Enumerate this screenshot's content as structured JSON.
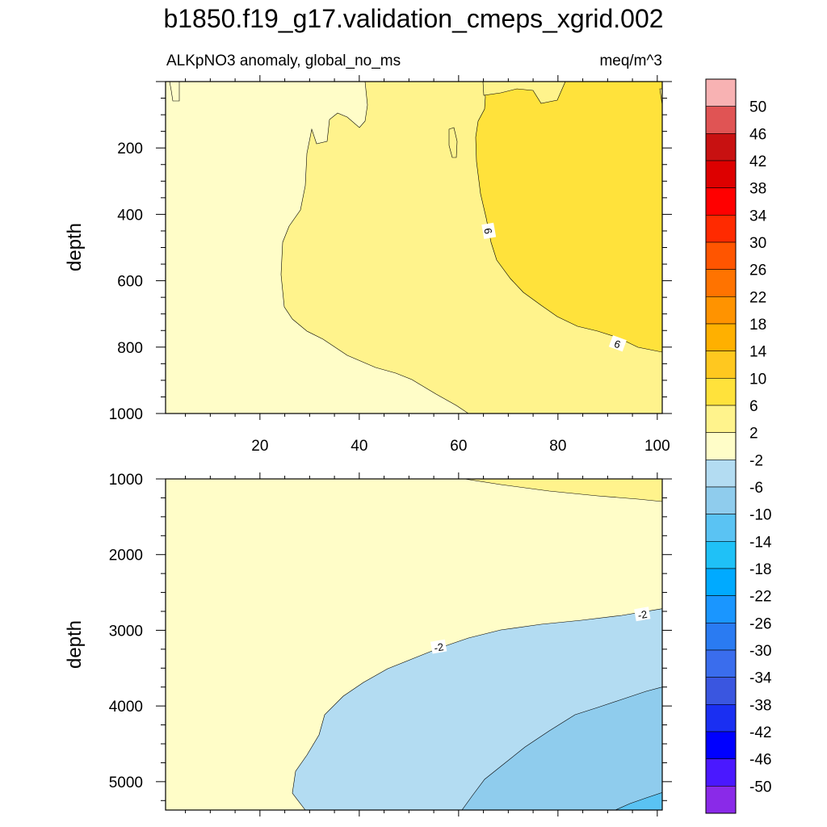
{
  "figure": {
    "title": "b1850.f19_g17.validation_cmeps_xgrid.002",
    "left_subtitle": "ALKpNO3 anomaly, global_no_ms",
    "right_subtitle": "meq/m^3"
  },
  "colorbar": {
    "orientation": "vertical",
    "placement": "right",
    "levels": [
      "50",
      "46",
      "42",
      "38",
      "34",
      "30",
      "26",
      "22",
      "18",
      "14",
      "10",
      "6",
      "2",
      "-2",
      "-6",
      "-10",
      "-14",
      "-18",
      "-22",
      "-26",
      "-30",
      "-34",
      "-38",
      "-42",
      "-46",
      "-50"
    ],
    "colors": [
      "#f8b2b3",
      "#e05454",
      "#c81111",
      "#dd0000",
      "#ff0000",
      "#ff2a00",
      "#ff5500",
      "#ff7300",
      "#ff9300",
      "#ffb000",
      "#ffc81f",
      "#ffe23b",
      "#fff38c",
      "#fffdc8",
      "#b3dcf2",
      "#8fcced",
      "#5ac3f3",
      "#1fc1f7",
      "#00aaff",
      "#1a96ff",
      "#2a7bf2",
      "#3a6ded",
      "#3a56e0",
      "#1a2ff2",
      "#0000ff",
      "#4a18ff",
      "#8a2ae8"
    ]
  },
  "chart_data": [
    {
      "type": "contour",
      "panel": "upper",
      "xlabel": "",
      "ylabel": "depth",
      "xlim": [
        1,
        101
      ],
      "ylim": [
        1000,
        0
      ],
      "xticks": [
        "20",
        "40",
        "60",
        "80",
        "100"
      ],
      "yticks": [
        "200",
        "400",
        "600",
        "800",
        "1000"
      ],
      "contour_labels": [
        {
          "text": "6",
          "x": 66,
          "y": 450
        },
        {
          "text": "6",
          "x": 92,
          "y": 790
        }
      ],
      "regions": [
        {
          "range": "-2 to 2",
          "color": "#fffdc8",
          "desc": "western side (x < ~25-60)"
        },
        {
          "range": "2 to 6",
          "color": "#fff38c",
          "desc": "central band"
        },
        {
          "range": "6 to 10",
          "color": "#ffe23b",
          "desc": "eastern region above 6 contour"
        }
      ]
    },
    {
      "type": "contour",
      "panel": "lower",
      "xlabel": "",
      "ylabel": "depth",
      "xlim": [
        1,
        101
      ],
      "ylim": [
        5375,
        1000
      ],
      "xticks": [],
      "yticks": [
        "1000",
        "2000",
        "3000",
        "4000",
        "5000"
      ],
      "contour_labels": [
        {
          "text": "-2",
          "x": 56,
          "y": 3220
        },
        {
          "text": "-2",
          "x": 97,
          "y": 2790
        }
      ],
      "regions": [
        {
          "range": "-2 to 2",
          "color": "#fffdc8",
          "desc": "upper and western part"
        },
        {
          "range": "2 to 6",
          "color": "#fff38c",
          "desc": "top-right corner near 1000"
        },
        {
          "range": "-6 to -2",
          "color": "#b3dcf2",
          "desc": "deep eastern bowl"
        },
        {
          "range": "-10 to -6",
          "color": "#8fcced",
          "desc": "bottom-right deeper core"
        },
        {
          "range": "-14 to -10",
          "color": "#5ac3f3",
          "desc": "bottom-right corner"
        }
      ]
    }
  ]
}
